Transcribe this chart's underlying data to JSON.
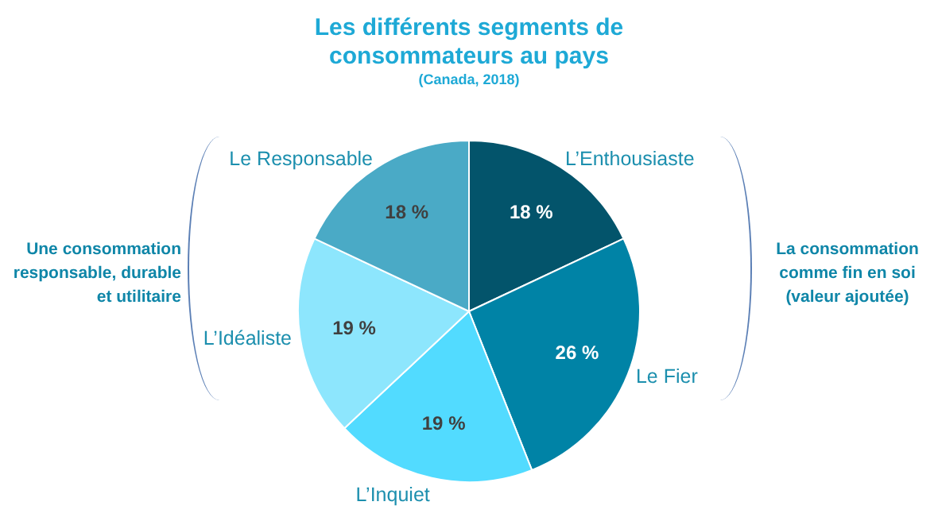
{
  "chart_data": {
    "type": "pie",
    "title": "Les différents segments de consommateurs au pays",
    "subtitle": "(Canada, 2018)",
    "categories": [
      "L’Enthousiaste",
      "Le Fier",
      "L’Inquiet",
      "L’Idéaliste",
      "Le Responsable"
    ],
    "values": [
      18,
      26,
      19,
      19,
      18
    ],
    "colors": [
      "#03546b",
      "#0083a6",
      "#52dbff",
      "#8de6fd",
      "#4aaac6"
    ],
    "value_labels": [
      "18 %",
      "26 %",
      "19 %",
      "19 %",
      "18 %"
    ],
    "legend": false,
    "annotations": [
      "Une consommation responsable, durable et utilitaire",
      "La consommation comme fin en soi (valeur ajoutée)"
    ]
  }
}
